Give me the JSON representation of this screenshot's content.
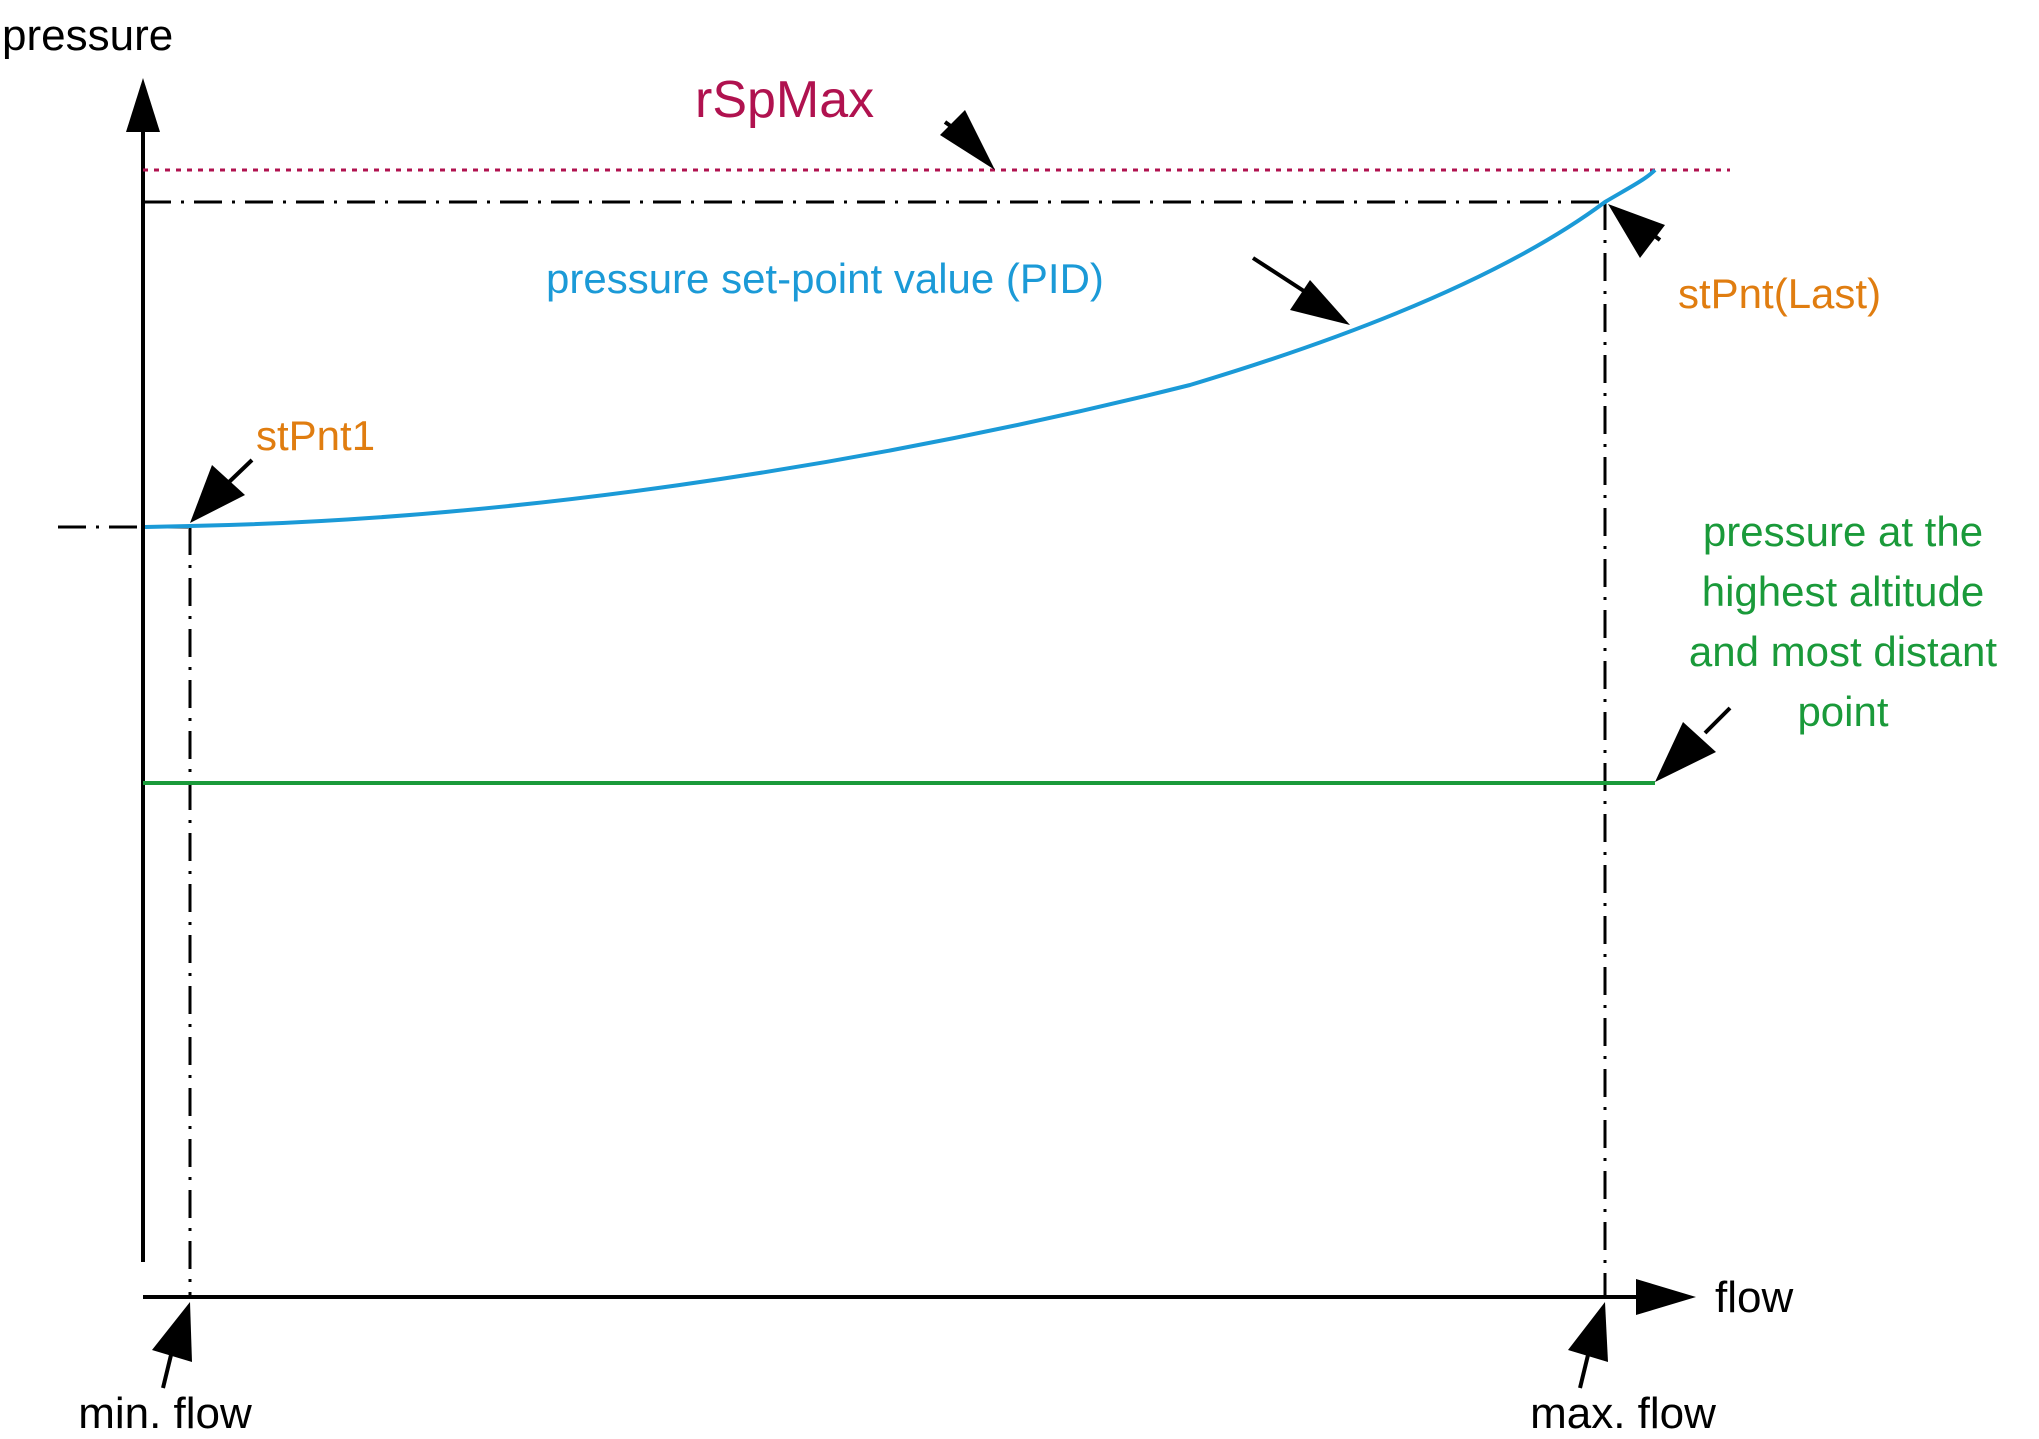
{
  "colors": {
    "axis": "#000000",
    "setpoint_curve": "#1b9ad7",
    "rspmax_line": "#b0124f",
    "altitude_line": "#1a9a3a",
    "orange_label": "#e07d10"
  },
  "axes": {
    "y_label": "pressure",
    "x_label": "flow"
  },
  "labels": {
    "rspmax": "rSpMax",
    "setpoint_curve": "pressure set-point value (PID)",
    "stpnt_last": "stPnt(Last)",
    "stpnt1": "stPnt1",
    "altitude_lines": [
      "pressure at the",
      "highest altitude",
      "and most distant",
      "point"
    ],
    "min_flow": "min. flow",
    "max_flow": "max. flow"
  }
}
